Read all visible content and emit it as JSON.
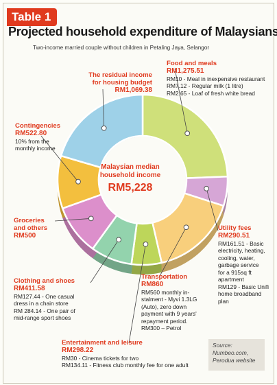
{
  "header": {
    "table_label": "Table 1",
    "title": "Projected household expenditure of Malaysians",
    "subtitle": "Two-income married couple without children in Petaling Jaya, Selangor"
  },
  "center": {
    "line1": "Malaysian median",
    "line2": "household income",
    "value": "RM5,228"
  },
  "source": "Source:\nNumbeo.com,\nPerodua website",
  "chart_data": {
    "type": "pie",
    "style": "donut",
    "total": 5228,
    "slices": [
      {
        "key": "food",
        "name": "Food and meals",
        "value": 1275.51,
        "value_label": "RM1,275.51",
        "color": "#cfe07a",
        "details": "RM10 - Meal in inexpensive restaurant\nRM7.12 - Regular milk (1 litre)\nRM2.65 - Loaf of fresh white bread"
      },
      {
        "key": "utility",
        "name": "Utility fees",
        "value": 290.51,
        "value_label": "RM290.51",
        "color": "#d6a6d6",
        "details": "RM161.51 - Basic\nelectricity, heating,\ncooling, water,\ngarbage service\nfor a 915sq ft\napartment\nRM129 - Basic Unifi\nhome broadband\nplan"
      },
      {
        "key": "transport",
        "name": "Transportation",
        "value": 860,
        "value_label": "RM860",
        "color": "#f8cf7c",
        "details": "RM560 monthly in-\nstalment - Myvi 1.3LG\n(Auto), zero down\npayment with 9 years'\nrepayment period.\nRM300 – Petrol"
      },
      {
        "key": "entertainment",
        "name": "Entertainment and leisure",
        "value": 298.22,
        "value_label": "RM298.22",
        "color": "#bdd65a",
        "details": "RM30 - Cinema tickets for two\nRM134.11 - Fitness club monthly fee for one adult"
      },
      {
        "key": "clothing",
        "name": "Clothing and shoes",
        "value": 411.58,
        "value_label": "RM411.58",
        "color": "#93d3ad",
        "details": "RM127.44 - One casual\ndress in a chain store\nRM 284.14 - One pair of\nmid-range sport shoes"
      },
      {
        "key": "groceries",
        "name": "Groceries\nand others",
        "value": 500,
        "value_label": "RM500",
        "color": "#dc8fcb",
        "details": ""
      },
      {
        "key": "contingencies",
        "name": "Contingencies",
        "value": 522.8,
        "value_label": "RM522.80",
        "color": "#f3bf3e",
        "details": "10% from the\nmonthly income"
      },
      {
        "key": "residual",
        "name": "The residual income\nfor housing budget",
        "value": 1069.38,
        "value_label": "RM1,069.38",
        "color": "#9ed1e8",
        "details": ""
      }
    ]
  }
}
